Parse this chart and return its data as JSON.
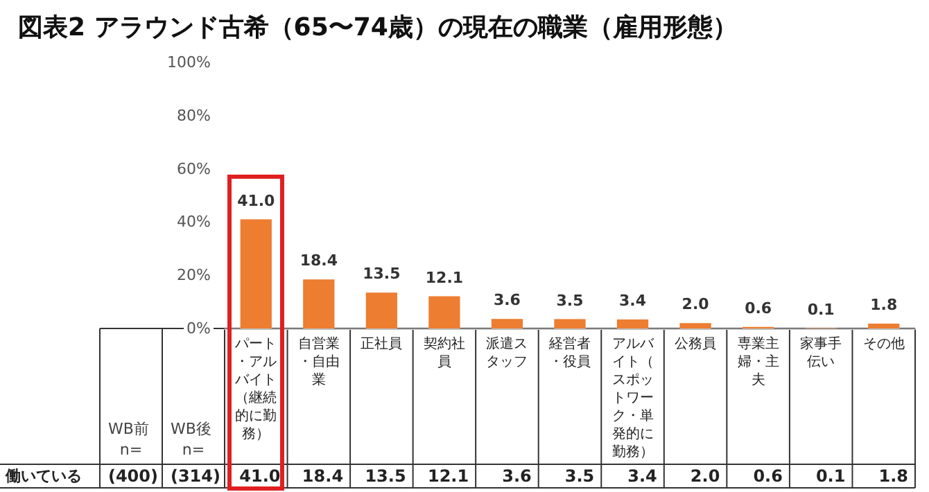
{
  "chart_data": {
    "type": "bar",
    "title": "図表2 アラウンド古希（65〜74歳）の現在の職業（雇用形態）",
    "categories": [
      "パート・アルバイト（継続的に勤務）",
      "自営業・自由業",
      "正社員",
      "契約社員",
      "派遣スタッフ",
      "経営者・役員",
      "アルバイト（スポットワーク・単発的に勤務）",
      "公務員",
      "専業主婦・主夫",
      "家事手伝い",
      "その他"
    ],
    "values": [
      41.0,
      18.4,
      13.5,
      12.1,
      3.6,
      3.5,
      3.4,
      2.0,
      0.6,
      0.1,
      1.8
    ],
    "color": "#ed7d31",
    "ylim": [
      0,
      100
    ],
    "yticks": [
      {
        "value": 0,
        "label": "0%"
      },
      {
        "value": 20,
        "label": "20%"
      },
      {
        "value": 40,
        "label": "40%"
      },
      {
        "value": 60,
        "label": "60%"
      },
      {
        "value": 80,
        "label": "80%"
      },
      {
        "value": 100,
        "label": "100%"
      }
    ],
    "value_labels": [
      "41.0",
      "18.4",
      "13.5",
      "12.1",
      "3.6",
      "3.5",
      "3.4",
      "2.0",
      "0.6",
      "0.1",
      "1.8"
    ],
    "annotations": [
      "WB前 n=",
      "WB後 n=",
      "働いている",
      "(400)",
      "(314)"
    ]
  }
}
